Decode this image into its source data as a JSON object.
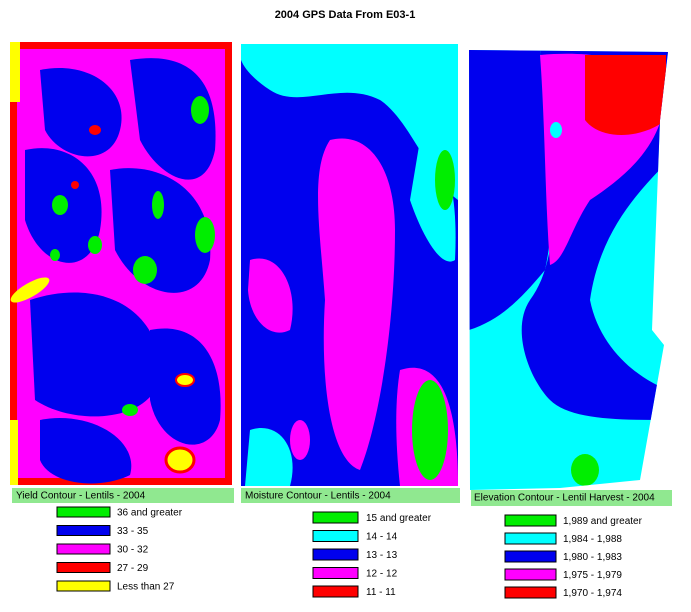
{
  "title": "2004 GPS Data From E03-1",
  "panels": [
    {
      "label": "Yield Contour - Lentils - 2004",
      "legend": [
        {
          "label": "36 and greater",
          "color": "#00ee00"
        },
        {
          "label": "33 - 35",
          "color": "#0000ee"
        },
        {
          "label": "30 - 32",
          "color": "#ff00ff"
        },
        {
          "label": "27 - 29",
          "color": "#ff0000"
        },
        {
          "label": "Less than 27",
          "color": "#ffff00"
        }
      ]
    },
    {
      "label": "Moisture Contour - Lentils - 2004",
      "legend": [
        {
          "label": "15 and greater",
          "color": "#00ee00"
        },
        {
          "label": "14 - 14",
          "color": "#00ffff"
        },
        {
          "label": "13 - 13",
          "color": "#0000ee"
        },
        {
          "label": "12 - 12",
          "color": "#ff00ff"
        },
        {
          "label": "11 - 11",
          "color": "#ff0000"
        }
      ]
    },
    {
      "label": "Elevation Contour - Lentil Harvest - 2004",
      "legend": [
        {
          "label": "1,989 and greater",
          "color": "#00ee00"
        },
        {
          "label": "1,984 - 1,988",
          "color": "#00ffff"
        },
        {
          "label": "1,980 - 1,983",
          "color": "#0000ee"
        },
        {
          "label": "1,975 - 1,979",
          "color": "#ff00ff"
        },
        {
          "label": "1,970 - 1,974",
          "color": "#ff0000"
        }
      ]
    }
  ]
}
